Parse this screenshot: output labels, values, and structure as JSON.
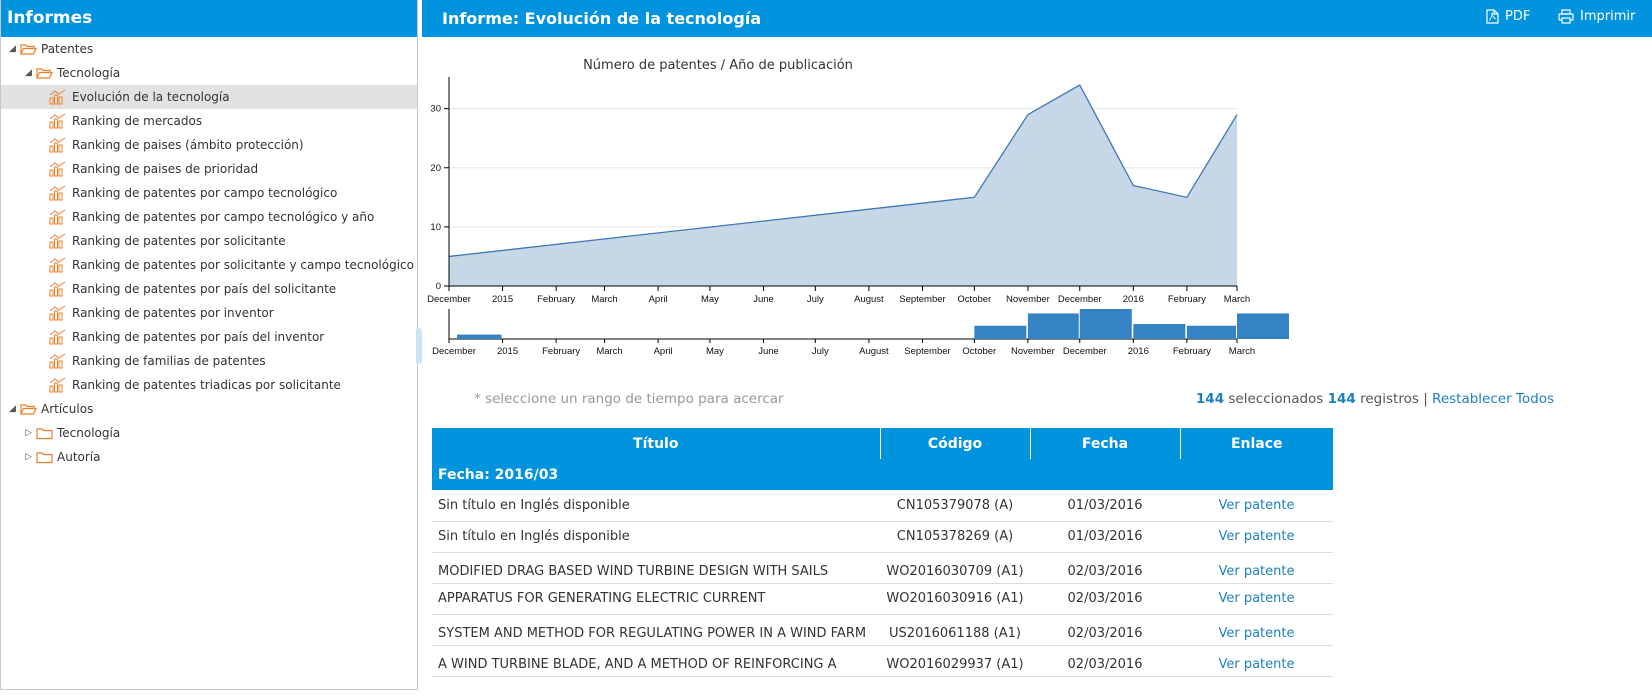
{
  "sidebar": {
    "title": "Informes",
    "tree": [
      {
        "label": "Patentes",
        "level": 0,
        "type": "folder",
        "state": "open",
        "toggle": "◢"
      },
      {
        "label": "Tecnología",
        "level": 1,
        "type": "folder",
        "state": "open",
        "toggle": "◢"
      },
      {
        "label": "Evolución de la tecnología",
        "level": 2,
        "type": "report",
        "selected": true
      },
      {
        "label": "Ranking de mercados",
        "level": 2,
        "type": "report"
      },
      {
        "label": "Ranking de paises (ámbito protección)",
        "level": 2,
        "type": "report"
      },
      {
        "label": "Ranking de paises de prioridad",
        "level": 2,
        "type": "report"
      },
      {
        "label": "Ranking de patentes por campo tecnológico",
        "level": 2,
        "type": "report"
      },
      {
        "label": "Ranking de patentes por campo tecnológico y año",
        "level": 2,
        "type": "report"
      },
      {
        "label": "Ranking de patentes por solicitante",
        "level": 2,
        "type": "report"
      },
      {
        "label": "Ranking de patentes por solicitante y campo tecnológico",
        "level": 2,
        "type": "report"
      },
      {
        "label": "Ranking de patentes por país del solicitante",
        "level": 2,
        "type": "report"
      },
      {
        "label": "Ranking de patentes por inventor",
        "level": 2,
        "type": "report"
      },
      {
        "label": "Ranking de patentes por país del inventor",
        "level": 2,
        "type": "report"
      },
      {
        "label": "Ranking de familias de patentes",
        "level": 2,
        "type": "report"
      },
      {
        "label": "Ranking de patentes triadicas por solicitante",
        "level": 2,
        "type": "report"
      },
      {
        "label": "Artículos",
        "level": 0,
        "type": "folder",
        "state": "open",
        "toggle": "◢"
      },
      {
        "label": "Tecnología",
        "level": 1,
        "type": "folder",
        "state": "closed",
        "toggle": "▷"
      },
      {
        "label": "Autoría",
        "level": 1,
        "type": "folder",
        "state": "closed",
        "toggle": "▷"
      }
    ]
  },
  "header": {
    "title": "Informe: Evolución de la tecnología",
    "pdf_label": "PDF",
    "print_label": "Imprimir"
  },
  "colors": {
    "brand": "#0293de",
    "line": "#3e78b2",
    "area": "#c6d7e8",
    "bar": "#3582c4",
    "folder": "#f07d2a",
    "link": "#1e80c1"
  },
  "chart_data": [
    {
      "type": "area",
      "title": "Número de patentes / Año de publicación",
      "x_ticks": [
        "December",
        "2015",
        "February",
        "March",
        "April",
        "May",
        "June",
        "July",
        "August",
        "September",
        "October",
        "November",
        "December",
        "2016",
        "February",
        "March"
      ],
      "y_ticks": [
        "0",
        "10",
        "20",
        "30"
      ],
      "ylim": [
        0,
        34
      ],
      "grid": true,
      "points": [
        {
          "x": "2014-12-01",
          "y": 5
        },
        {
          "x": "2015-10-01",
          "y": 15
        },
        {
          "x": "2015-11-01",
          "y": 29
        },
        {
          "x": "2015-12-01",
          "y": 34
        },
        {
          "x": "2016-01-01",
          "y": 17
        },
        {
          "x": "2016-02-01",
          "y": 15
        },
        {
          "x": "2016-03-01",
          "y": 29
        }
      ]
    },
    {
      "type": "bar",
      "x_ticks": [
        "December",
        "2015",
        "February",
        "March",
        "April",
        "May",
        "June",
        "July",
        "August",
        "September",
        "October",
        "November",
        "December",
        "2016",
        "February",
        "March"
      ],
      "categories": [
        "2014-12",
        "2015-10",
        "2015-11",
        "2015-12",
        "2016-01",
        "2016-02",
        "2016-03"
      ],
      "values": [
        5,
        15,
        29,
        34,
        17,
        15,
        29
      ]
    }
  ],
  "filter": {
    "hint": "* seleccione un rango de tiempo para acercar",
    "selected_count": "144",
    "selected_label": "seleccionados",
    "total_count": "144",
    "total_label": "registros",
    "separator": "|",
    "reset_label": "Restablecer Todos"
  },
  "table": {
    "columns": [
      "Título",
      "Código",
      "Fecha",
      "Enlace"
    ],
    "group_label": "Fecha: 2016/03",
    "rows": [
      {
        "title": "Sin título en Inglés disponible",
        "code": "CN105379078 (A)",
        "date": "01/03/2016",
        "link": "Ver patente"
      },
      {
        "title": "Sin título en Inglés disponible",
        "code": "CN105378269 (A)",
        "date": "01/03/2016",
        "link": "Ver patente"
      },
      {
        "title": " MODIFIED DRAG BASED WIND TURBINE DESIGN WITH SAILS",
        "code": "WO2016030709 (A1)",
        "date": "02/03/2016",
        "link": "Ver patente"
      },
      {
        "title": " APPARATUS FOR GENERATING ELECTRIC CURRENT",
        "code": "WO2016030916 (A1)",
        "date": "02/03/2016",
        "link": "Ver patente"
      },
      {
        "title": " SYSTEM AND METHOD FOR REGULATING POWER IN A WIND FARM",
        "code": "US2016061188 (A1)",
        "date": "02/03/2016",
        "link": "Ver patente"
      },
      {
        "title": " A WIND TURBINE BLADE, AND A METHOD OF REINFORCING A",
        "code": "WO2016029937 (A1)",
        "date": "02/03/2016",
        "link": "Ver patente"
      }
    ]
  }
}
